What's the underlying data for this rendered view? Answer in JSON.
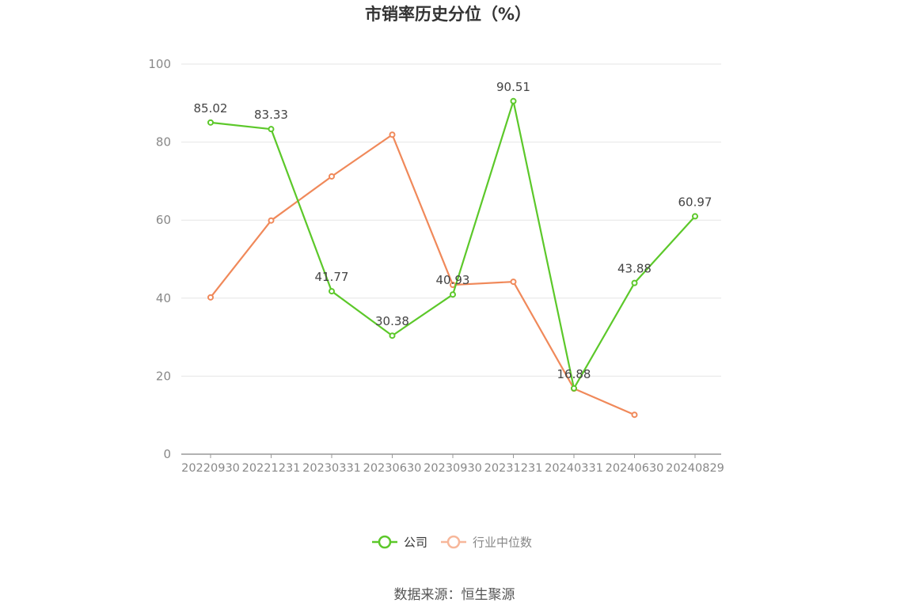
{
  "chart_data": {
    "type": "line",
    "title": "市销率历史分位（%）",
    "categories": [
      "20220930",
      "20221231",
      "20230331",
      "20230630",
      "20230930",
      "20231231",
      "20240331",
      "20240630",
      "20240829"
    ],
    "ylim": [
      0,
      100
    ],
    "yticks": [
      0,
      20,
      40,
      60,
      80,
      100
    ],
    "grid": true,
    "legend_position": "bottom",
    "series": [
      {
        "name": "公司",
        "color": "#5cc82a",
        "values": [
          85.02,
          83.33,
          41.77,
          30.38,
          40.93,
          90.51,
          16.88,
          43.88,
          60.97
        ],
        "labels": [
          "85.02",
          "83.33",
          "41.77",
          "30.38",
          "40.93",
          "90.51",
          "16.88",
          "43.88",
          "60.97"
        ]
      },
      {
        "name": "行业中位数",
        "color": "#f0895a",
        "values": [
          40.2,
          59.9,
          71.2,
          81.9,
          43.4,
          44.2,
          16.8,
          10.1,
          null
        ]
      }
    ]
  },
  "source": "数据来源：恒生聚源"
}
